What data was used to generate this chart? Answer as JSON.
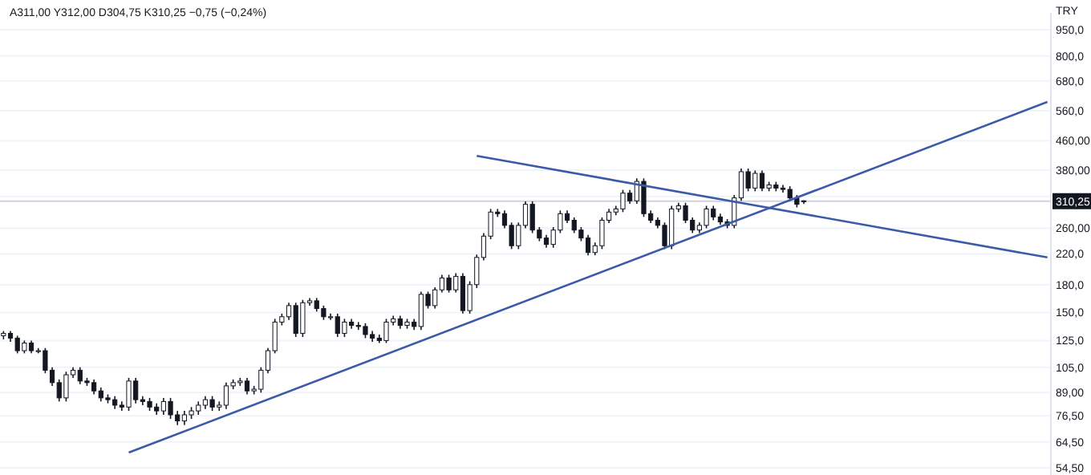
{
  "chart_data": {
    "type": "candlestick",
    "ylabel": "TRY",
    "annotations": [
      "A311,00 Y312,00 D304,75 K310,25 −0,75 (−0,24%)"
    ],
    "log": true,
    "grid": "y",
    "tick_labels": "y",
    "color": "#131722",
    "ylim": [
      52,
      1060
    ],
    "yticks": [
      {
        "value": 950,
        "label": "950,0"
      },
      {
        "value": 800,
        "label": "800,0"
      },
      {
        "value": 680,
        "label": "680,0"
      },
      {
        "value": 560,
        "label": "560,0"
      },
      {
        "value": 460,
        "label": "460,00"
      },
      {
        "value": 380,
        "label": "380,00"
      },
      {
        "value": 320,
        "label": null
      },
      {
        "value": 260,
        "label": "260,00"
      },
      {
        "value": 220,
        "label": "220,0"
      },
      {
        "value": 180,
        "label": "180,0"
      },
      {
        "value": 150,
        "label": "150,0"
      },
      {
        "value": 125,
        "label": "125,0"
      },
      {
        "value": 105,
        "label": "105,0"
      },
      {
        "value": 89,
        "label": "89,00"
      },
      {
        "value": 76.5,
        "label": "76,50"
      },
      {
        "value": 64.5,
        "label": "64,50"
      },
      {
        "value": 54.5,
        "label": "54,50"
      }
    ],
    "ref_lines": [
      {
        "axis": "y",
        "value": 310.25,
        "label": "310,25",
        "color": "#d1d4dc"
      }
    ],
    "categories": [
      null,
      null,
      null,
      null,
      null,
      null,
      null,
      null,
      null,
      null,
      null,
      null,
      null,
      null,
      null,
      null,
      null,
      null,
      null,
      null,
      null,
      null,
      null,
      null,
      null,
      null,
      null,
      null,
      null,
      null,
      null,
      null,
      null,
      null,
      null,
      null,
      null,
      null,
      null,
      null,
      null,
      null,
      null,
      null,
      null,
      null,
      null,
      null,
      null,
      null,
      null,
      null,
      null,
      null,
      null,
      null,
      null,
      null,
      null,
      null,
      null,
      null,
      null,
      null,
      null,
      null,
      null,
      null,
      null,
      null,
      null,
      null,
      null,
      null,
      null,
      null,
      null,
      null,
      null,
      null,
      null,
      null,
      null,
      null,
      null,
      null,
      null,
      null,
      null,
      null,
      null,
      null,
      null,
      null,
      null,
      null,
      null,
      null,
      null,
      null,
      null,
      null,
      null,
      null,
      null,
      null,
      null,
      null,
      null,
      null,
      null,
      null,
      null,
      null,
      null,
      null,
      null,
      null,
      null,
      null,
      null,
      null,
      null,
      null,
      null,
      null,
      null,
      null,
      null,
      null,
      null,
      null,
      null,
      null,
      null,
      null,
      null,
      null,
      null,
      null,
      null,
      null,
      null,
      null,
      null,
      null,
      null,
      null,
      null,
      null,
      null
    ],
    "ohlc": [
      [
        129,
        133,
        126,
        131
      ],
      [
        131,
        133,
        124,
        127
      ],
      [
        127,
        129,
        115,
        117
      ],
      [
        117,
        125,
        115,
        123
      ],
      [
        123,
        125,
        115,
        117
      ],
      [
        117,
        119,
        115,
        117
      ],
      [
        117,
        119,
        101,
        103
      ],
      [
        103,
        105,
        93,
        95
      ],
      [
        95,
        97,
        84,
        86
      ],
      [
        86,
        102,
        84,
        100
      ],
      [
        100,
        105,
        98,
        103
      ],
      [
        103,
        105,
        94,
        96
      ],
      [
        96,
        98,
        93,
        95
      ],
      [
        95,
        97,
        88,
        90
      ],
      [
        90,
        92,
        84,
        86
      ],
      [
        86,
        88,
        83,
        85
      ],
      [
        85,
        87,
        80,
        82
      ],
      [
        82,
        84,
        79,
        81
      ],
      [
        81,
        98,
        79,
        96
      ],
      [
        96,
        98,
        83,
        85
      ],
      [
        85,
        87,
        82,
        84
      ],
      [
        84,
        86,
        79,
        81
      ],
      [
        81,
        83,
        77,
        79
      ],
      [
        79,
        86,
        77,
        84
      ],
      [
        84,
        86,
        75,
        77
      ],
      [
        77,
        79,
        72,
        74
      ],
      [
        74,
        79,
        72,
        77
      ],
      [
        77,
        81,
        75,
        79
      ],
      [
        79,
        84,
        77,
        82
      ],
      [
        82,
        87,
        80,
        85
      ],
      [
        85,
        87,
        79,
        81
      ],
      [
        81,
        84,
        79,
        82
      ],
      [
        82,
        95,
        80,
        93
      ],
      [
        93,
        97,
        91,
        95
      ],
      [
        95,
        98,
        93,
        96
      ],
      [
        96,
        98,
        88,
        90
      ],
      [
        90,
        93,
        88,
        91
      ],
      [
        91,
        105,
        89,
        103
      ],
      [
        103,
        119,
        101,
        117
      ],
      [
        117,
        144,
        115,
        141
      ],
      [
        141,
        149,
        138,
        146
      ],
      [
        146,
        160,
        143,
        157
      ],
      [
        157,
        160,
        128,
        131
      ],
      [
        131,
        163,
        128,
        160
      ],
      [
        160,
        165,
        157,
        162
      ],
      [
        162,
        165,
        151,
        154
      ],
      [
        154,
        157,
        143,
        146
      ],
      [
        146,
        149,
        143,
        146
      ],
      [
        146,
        149,
        128,
        131
      ],
      [
        131,
        144,
        128,
        141
      ],
      [
        141,
        144,
        135,
        138
      ],
      [
        138,
        141,
        134,
        137
      ],
      [
        137,
        140,
        127,
        130
      ],
      [
        130,
        133,
        124,
        127
      ],
      [
        127,
        130,
        123,
        125
      ],
      [
        125,
        144,
        123,
        141
      ],
      [
        141,
        147,
        138,
        144
      ],
      [
        144,
        147,
        135,
        138
      ],
      [
        138,
        144,
        135,
        141
      ],
      [
        141,
        144,
        134,
        137
      ],
      [
        137,
        172,
        134,
        169
      ],
      [
        169,
        172,
        154,
        157
      ],
      [
        157,
        177,
        154,
        174
      ],
      [
        174,
        192,
        171,
        188
      ],
      [
        188,
        192,
        171,
        174
      ],
      [
        174,
        194,
        171,
        190
      ],
      [
        190,
        194,
        149,
        152
      ],
      [
        152,
        184,
        149,
        180
      ],
      [
        180,
        219,
        176,
        215
      ],
      [
        215,
        252,
        211,
        247
      ],
      [
        247,
        295,
        242,
        289
      ],
      [
        289,
        295,
        280,
        286
      ],
      [
        286,
        292,
        260,
        265
      ],
      [
        265,
        270,
        227,
        232
      ],
      [
        232,
        270,
        227,
        265
      ],
      [
        265,
        310,
        260,
        304
      ],
      [
        304,
        310,
        252,
        257
      ],
      [
        257,
        262,
        239,
        244
      ],
      [
        244,
        249,
        229,
        234
      ],
      [
        234,
        262,
        229,
        257
      ],
      [
        257,
        292,
        252,
        286
      ],
      [
        286,
        292,
        269,
        274
      ],
      [
        274,
        279,
        252,
        257
      ],
      [
        257,
        262,
        239,
        244
      ],
      [
        244,
        249,
        218,
        222
      ],
      [
        222,
        237,
        218,
        232
      ],
      [
        232,
        279,
        227,
        274
      ],
      [
        274,
        295,
        269,
        289
      ],
      [
        289,
        301,
        283,
        295
      ],
      [
        295,
        334,
        289,
        327
      ],
      [
        327,
        334,
        305,
        311
      ],
      [
        311,
        360,
        305,
        353
      ],
      [
        353,
        360,
        280,
        286
      ],
      [
        286,
        292,
        269,
        274
      ],
      [
        274,
        279,
        260,
        265
      ],
      [
        265,
        270,
        227,
        232
      ],
      [
        232,
        301,
        227,
        295
      ],
      [
        295,
        307,
        289,
        301
      ],
      [
        301,
        307,
        269,
        274
      ],
      [
        274,
        279,
        252,
        257
      ],
      [
        257,
        270,
        252,
        265
      ],
      [
        265,
        301,
        260,
        295
      ],
      [
        295,
        301,
        274,
        280
      ],
      [
        280,
        286,
        266,
        271
      ],
      [
        271,
        276,
        260,
        265
      ],
      [
        265,
        323,
        260,
        317
      ],
      [
        317,
        384,
        311,
        376
      ],
      [
        376,
        384,
        331,
        338
      ],
      [
        338,
        379,
        331,
        372
      ],
      [
        372,
        379,
        331,
        338
      ],
      [
        338,
        352,
        331,
        345
      ],
      [
        345,
        352,
        331,
        338
      ],
      [
        338,
        345,
        328,
        335
      ],
      [
        335,
        342,
        311,
        317
      ],
      [
        317,
        323,
        298,
        304
      ],
      [
        311,
        312,
        304.75,
        310.25
      ],
      null,
      null,
      null,
      null,
      null,
      null,
      null,
      null,
      null,
      null,
      null,
      null,
      null,
      null,
      null,
      null,
      null,
      null,
      null,
      null,
      null,
      null,
      null,
      null,
      null,
      null,
      null,
      null,
      null,
      null,
      null,
      null,
      null,
      null,
      null
    ],
    "series": [
      {
        "type": "line",
        "values": [
          null,
          null,
          null,
          null,
          null,
          null,
          null,
          null,
          null,
          null,
          null,
          null,
          null,
          null,
          null,
          null,
          null,
          null,
          60.2,
          null,
          null,
          null,
          null,
          null,
          null,
          null,
          null,
          null,
          null,
          null,
          null,
          null,
          null,
          null,
          null,
          null,
          null,
          null,
          null,
          null,
          null,
          null,
          null,
          null,
          null,
          null,
          null,
          null,
          null,
          null,
          null,
          null,
          null,
          null,
          null,
          null,
          null,
          null,
          null,
          null,
          null,
          null,
          null,
          null,
          null,
          null,
          null,
          null,
          null,
          null,
          null,
          null,
          null,
          null,
          null,
          null,
          null,
          null,
          null,
          null,
          null,
          null,
          null,
          null,
          null,
          null,
          null,
          null,
          null,
          null,
          null,
          null,
          null,
          null,
          null,
          null,
          null,
          null,
          null,
          null,
          null,
          null,
          null,
          null,
          null,
          null,
          null,
          null,
          null,
          null,
          null,
          null,
          null,
          null,
          null,
          null,
          null,
          null,
          null,
          null,
          null,
          null,
          null,
          null,
          null,
          null,
          null,
          null,
          null,
          null,
          null,
          null,
          null,
          null,
          null,
          null,
          null,
          null,
          null,
          null,
          null,
          null,
          null,
          null,
          null,
          null,
          null,
          null,
          null,
          null,
          593
        ],
        "color": "#3c5aa8"
      },
      {
        "type": "line",
        "values": [
          null,
          null,
          null,
          null,
          null,
          null,
          null,
          null,
          null,
          null,
          null,
          null,
          null,
          null,
          null,
          null,
          null,
          null,
          null,
          null,
          null,
          null,
          null,
          null,
          null,
          null,
          null,
          null,
          null,
          null,
          null,
          null,
          null,
          null,
          null,
          null,
          null,
          null,
          null,
          null,
          null,
          null,
          null,
          null,
          null,
          null,
          null,
          null,
          null,
          null,
          null,
          null,
          null,
          null,
          null,
          null,
          null,
          null,
          null,
          null,
          null,
          null,
          null,
          null,
          null,
          null,
          null,
          null,
          417,
          null,
          null,
          null,
          null,
          null,
          null,
          null,
          null,
          null,
          null,
          null,
          null,
          null,
          null,
          null,
          null,
          null,
          null,
          null,
          null,
          null,
          null,
          null,
          null,
          null,
          null,
          null,
          null,
          null,
          null,
          null,
          null,
          null,
          null,
          null,
          null,
          null,
          null,
          null,
          null,
          null,
          null,
          null,
          null,
          null,
          null,
          null,
          null,
          null,
          null,
          null,
          null,
          null,
          null,
          null,
          null,
          null,
          null,
          null,
          null,
          null,
          null,
          null,
          null,
          null,
          null,
          null,
          null,
          null,
          null,
          null,
          null,
          null,
          null,
          null,
          null,
          null,
          null,
          null,
          null,
          null,
          215
        ],
        "color": "#3c5aa8"
      }
    ]
  }
}
